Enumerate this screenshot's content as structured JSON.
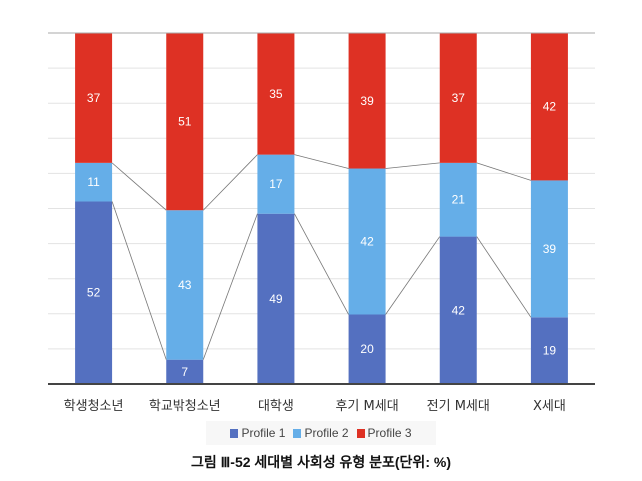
{
  "chart_data": {
    "type": "bar",
    "stacked": "percent",
    "title": "그림 Ⅲ-52  세대별 사회성 유형 분포(단위: %)",
    "categories": [
      "학생청소년",
      "학교밖청소년",
      "대학생",
      "후기 M세대",
      "전기 M세대",
      "X세대"
    ],
    "series": [
      {
        "name": "Profile 1",
        "color": "#5470c0",
        "values": [
          52,
          7,
          49,
          20,
          42,
          19
        ]
      },
      {
        "name": "Profile 2",
        "color": "#65aee8",
        "values": [
          11,
          43,
          17,
          42,
          21,
          39
        ]
      },
      {
        "name": "Profile 3",
        "color": "#de3124",
        "values": [
          37,
          51,
          35,
          39,
          37,
          42
        ]
      }
    ],
    "ylim": [
      0,
      100
    ],
    "grid": true,
    "series_lines": true,
    "legend_position": "bottom"
  }
}
